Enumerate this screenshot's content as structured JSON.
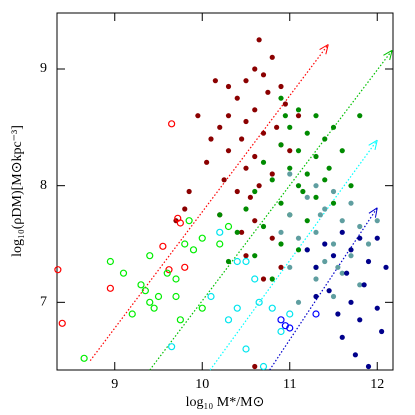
{
  "chart_data": {
    "type": "scatter",
    "xlabel": "log₁₀ M*/M⊙",
    "ylabel": "log₁₀(ρDM)[M⊙kpc⁻³]",
    "xlim": [
      8.34,
      12.18
    ],
    "ylim": [
      6.42,
      9.48
    ],
    "xticks": [
      9,
      10,
      11,
      12
    ],
    "yticks": [
      7,
      8,
      9
    ],
    "trend_lines": [
      {
        "color": "#ff0000",
        "x": [
          8.72,
          11.44
        ],
        "y": [
          6.5,
          9.21
        ]
      },
      {
        "color": "#00c000",
        "x": [
          9.4,
          12.17
        ],
        "y": [
          6.42,
          9.16
        ]
      },
      {
        "color": "#00ffff",
        "x": [
          10.09,
          12.0
        ],
        "y": [
          6.42,
          8.39
        ]
      },
      {
        "color": "#0000cc",
        "x": [
          10.77,
          12.0
        ],
        "y": [
          6.42,
          7.81
        ]
      }
    ],
    "series": [
      {
        "color": "#8b0000",
        "filled": true,
        "x": [
          10.65,
          10.8,
          10.6,
          10.7,
          10.5,
          10.9,
          10.75,
          10.4,
          10.95,
          10.6,
          10.3,
          10.5,
          10.85,
          10.2,
          10.7,
          10.45,
          10.1,
          10.9,
          10.3,
          10.6,
          10.05,
          10.5,
          10.8,
          10.25,
          10.65,
          9.85,
          10.4,
          9.8,
          10.55,
          10.2,
          10.6,
          9.7,
          10.45,
          10.8,
          10.5,
          10.9,
          10.7,
          11.1,
          11.0,
          10.3,
          9.95,
          10.15,
          10.6
        ],
        "y": [
          9.25,
          9.1,
          9.0,
          8.95,
          8.9,
          8.85,
          8.8,
          8.75,
          8.7,
          8.65,
          8.6,
          8.55,
          8.5,
          8.5,
          8.45,
          8.4,
          8.4,
          8.35,
          8.3,
          8.25,
          8.2,
          8.15,
          8.1,
          8.05,
          8.0,
          7.95,
          7.95,
          7.8,
          7.9,
          7.75,
          7.7,
          7.7,
          7.6,
          7.55,
          7.4,
          7.3,
          7.2,
          8.6,
          8.3,
          8.85,
          8.6,
          8.9,
          6.45
        ]
      },
      {
        "color": "#008b00",
        "filled": true,
        "x": [
          10.9,
          11.1,
          11.3,
          11.0,
          11.2,
          11.5,
          11.4,
          10.9,
          11.1,
          11.3,
          11.6,
          10.7,
          11.0,
          11.2,
          11.4,
          10.8,
          11.1,
          10.6,
          11.3,
          10.9,
          11.5,
          10.5,
          11.0,
          11.2,
          10.7,
          10.4,
          10.9,
          11.1,
          10.6,
          10.3,
          11.3,
          10.8,
          11.7,
          11.8,
          10.2,
          11.45,
          10.95,
          11.15
        ],
        "y": [
          8.75,
          8.65,
          8.6,
          8.5,
          8.45,
          8.5,
          8.4,
          8.35,
          8.3,
          8.25,
          8.3,
          8.2,
          8.15,
          8.1,
          8.05,
          8.05,
          8.0,
          7.95,
          7.9,
          7.85,
          7.85,
          7.8,
          7.75,
          7.7,
          7.65,
          7.6,
          7.5,
          7.45,
          7.4,
          7.35,
          7.3,
          7.2,
          8.0,
          8.6,
          7.75,
          8.15,
          8.6,
          7.95
        ]
      },
      {
        "color": "#5f9ea0",
        "filled": true,
        "x": [
          11.0,
          11.3,
          11.5,
          11.2,
          11.7,
          11.4,
          11.0,
          11.6,
          11.8,
          11.3,
          11.1,
          11.5,
          11.9,
          11.2,
          11.7,
          11.4,
          11.0,
          11.6,
          11.3,
          11.8,
          11.5,
          10.9,
          12.0,
          11.1,
          11.35,
          11.55
        ],
        "y": [
          8.1,
          8.0,
          7.95,
          7.9,
          7.85,
          7.8,
          7.75,
          7.7,
          7.65,
          7.6,
          7.55,
          7.5,
          7.5,
          7.45,
          7.4,
          7.35,
          7.3,
          7.25,
          7.2,
          7.15,
          7.05,
          7.6,
          7.7,
          7.0,
          7.75,
          7.3
        ]
      },
      {
        "color": "#00008b",
        "filled": true,
        "x": [
          11.6,
          11.8,
          11.4,
          12.0,
          11.7,
          11.5,
          11.9,
          11.3,
          11.65,
          12.1,
          11.85,
          11.45,
          11.7,
          12.0,
          11.55,
          11.8,
          11.3,
          12.05,
          11.6,
          11.75,
          11.9,
          11.2
        ],
        "y": [
          7.6,
          7.55,
          7.5,
          7.55,
          7.45,
          7.4,
          7.35,
          7.3,
          7.25,
          7.3,
          7.15,
          7.1,
          7.0,
          6.95,
          6.9,
          6.85,
          7.05,
          6.75,
          6.7,
          6.55,
          6.45,
          7.45
        ]
      },
      {
        "color": "#ff0000",
        "filled": false,
        "x": [
          8.35,
          8.4,
          8.95,
          9.55,
          9.65,
          9.75,
          9.8,
          9.62,
          9.72
        ],
        "y": [
          7.28,
          6.82,
          7.12,
          7.48,
          8.53,
          7.68,
          7.3,
          7.28,
          7.72
        ]
      },
      {
        "color": "#00ee00",
        "filled": false,
        "x": [
          8.65,
          8.95,
          9.1,
          9.3,
          9.35,
          9.4,
          9.45,
          9.5,
          9.2,
          9.4,
          9.6,
          9.7,
          9.7,
          9.8,
          9.85,
          9.9,
          10.0,
          10.2,
          10.3,
          9.75,
          10.0
        ],
        "y": [
          6.52,
          7.35,
          7.25,
          7.15,
          7.1,
          7.0,
          6.95,
          7.05,
          6.9,
          7.4,
          7.25,
          7.2,
          7.05,
          7.5,
          7.7,
          7.45,
          7.55,
          7.5,
          7.65,
          6.85,
          6.95
        ]
      },
      {
        "color": "#00e5ee",
        "filled": false,
        "x": [
          9.65,
          10.1,
          10.2,
          10.4,
          10.6,
          10.65,
          10.8,
          10.4,
          10.5,
          10.3,
          10.9,
          11.0,
          10.7,
          10.5
        ],
        "y": [
          6.62,
          7.05,
          7.6,
          7.35,
          7.2,
          7.0,
          6.95,
          6.95,
          6.6,
          6.85,
          6.75,
          6.9,
          6.45,
          7.35
        ]
      },
      {
        "color": "#0000ff",
        "filled": false,
        "x": [
          10.95,
          11.0,
          10.9,
          11.3
        ],
        "y": [
          6.8,
          6.78,
          6.85,
          6.9
        ]
      }
    ]
  }
}
